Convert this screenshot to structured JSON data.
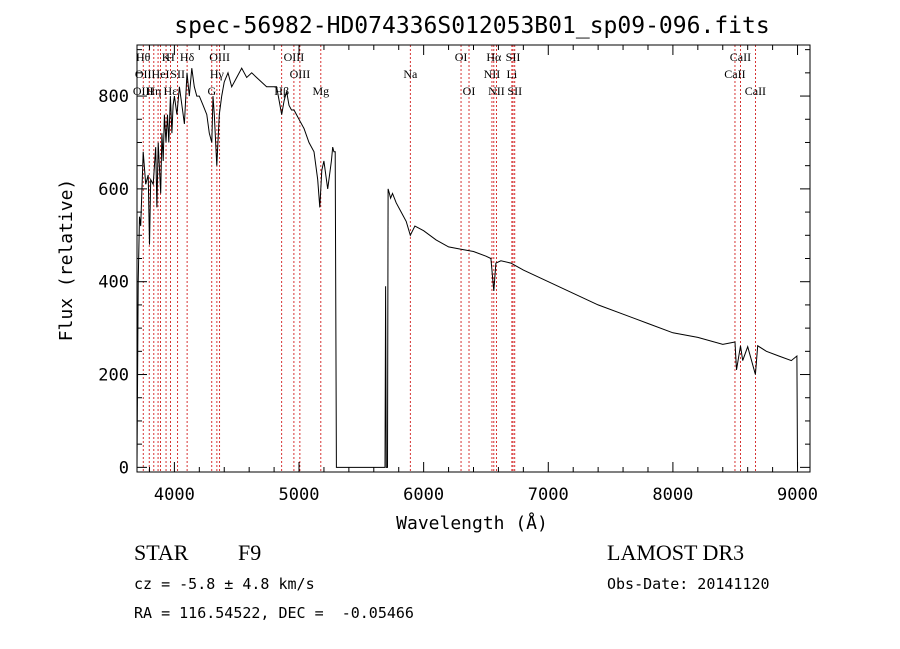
{
  "chart_data": {
    "type": "line",
    "title": "spec-56982-HD074336S012053B01_sp09-096.fits",
    "xlabel": "Wavelength (Å)",
    "ylabel": "Flux (relative)",
    "xlim": [
      3700,
      9100
    ],
    "ylim": [
      -10,
      910
    ],
    "grid": false,
    "x_ticks": [
      4000,
      5000,
      6000,
      7000,
      8000,
      9000
    ],
    "x_tick_labels": [
      "4000",
      "5000",
      "6000",
      "7000",
      "8000",
      "9000"
    ],
    "y_ticks": [
      0,
      200,
      400,
      600,
      800
    ],
    "y_tick_labels": [
      "0",
      "200",
      "400",
      "600",
      "800"
    ],
    "series": [
      {
        "name": "flux",
        "x": [
          3700,
          3710,
          3720,
          3730,
          3750,
          3770,
          3790,
          3800,
          3810,
          3830,
          3850,
          3860,
          3870,
          3890,
          3900,
          3910,
          3920,
          3933,
          3945,
          3955,
          3968,
          3980,
          3990,
          4000,
          4020,
          4040,
          4060,
          4080,
          4101,
          4120,
          4140,
          4160,
          4180,
          4200,
          4230,
          4260,
          4280,
          4300,
          4310,
          4320,
          4340,
          4360,
          4380,
          4400,
          4430,
          4460,
          4500,
          4540,
          4580,
          4620,
          4660,
          4700,
          4740,
          4780,
          4820,
          4861,
          4880,
          4900,
          4920,
          4940,
          4960,
          4980,
          5000,
          5040,
          5080,
          5120,
          5150,
          5167,
          5183,
          5200,
          5230,
          5260,
          5270,
          5280,
          5290,
          5300,
          5320,
          5500,
          5650,
          5690,
          5695,
          5700,
          5705,
          5710,
          5715,
          5725,
          5735,
          5750,
          5780,
          5820,
          5860,
          5893,
          5930,
          6000,
          6100,
          6200,
          6300,
          6400,
          6500,
          6540,
          6563,
          6580,
          6620,
          6700,
          6800,
          7000,
          7200,
          7400,
          7600,
          7800,
          8000,
          8200,
          8400,
          8498,
          8510,
          8542,
          8560,
          8600,
          8662,
          8680,
          8750,
          8850,
          8950,
          8995,
          9000
        ],
        "values": [
          0,
          400,
          540,
          520,
          680,
          610,
          630,
          480,
          620,
          610,
          690,
          560,
          700,
          590,
          720,
          660,
          760,
          700,
          760,
          700,
          800,
          720,
          780,
          800,
          760,
          820,
          780,
          740,
          850,
          800,
          860,
          820,
          800,
          800,
          780,
          760,
          720,
          700,
          800,
          760,
          650,
          760,
          800,
          830,
          850,
          820,
          840,
          860,
          840,
          850,
          840,
          830,
          820,
          820,
          820,
          760,
          790,
          810,
          780,
          770,
          770,
          760,
          750,
          730,
          700,
          680,
          620,
          560,
          640,
          660,
          600,
          660,
          690,
          680,
          680,
          0,
          0,
          0,
          0,
          0,
          390,
          0,
          0,
          0,
          600,
          590,
          580,
          590,
          570,
          550,
          530,
          500,
          520,
          510,
          490,
          475,
          470,
          465,
          455,
          450,
          380,
          440,
          445,
          440,
          425,
          400,
          375,
          350,
          330,
          310,
          290,
          280,
          265,
          270,
          210,
          262,
          230,
          260,
          200,
          262,
          250,
          240,
          230,
          240,
          0
        ]
      }
    ],
    "line_labels": [
      {
        "wavelength": 3750,
        "rows": [
          "Hθ",
          "OII",
          "OIII"
        ]
      },
      {
        "wavelength": 3798,
        "rows": [
          "",
          "",
          ""
        ]
      },
      {
        "wavelength": 3835,
        "rows": [
          "",
          "",
          "Hη"
        ]
      },
      {
        "wavelength": 3869,
        "rows": [
          "",
          "",
          ""
        ]
      },
      {
        "wavelength": 3889,
        "rows": [
          "",
          "HeI",
          ""
        ]
      },
      {
        "wavelength": 3933,
        "rows": [
          "K",
          "",
          ""
        ]
      },
      {
        "wavelength": 3968,
        "rows": [
          "H",
          "",
          "Hε"
        ]
      },
      {
        "wavelength": 4026,
        "rows": [
          "",
          "SII",
          ""
        ]
      },
      {
        "wavelength": 4102,
        "rows": [
          "Hδ",
          "",
          ""
        ]
      },
      {
        "wavelength": 4300,
        "rows": [
          "",
          "",
          "G"
        ]
      },
      {
        "wavelength": 4341,
        "rows": [
          "",
          "Hγ",
          ""
        ]
      },
      {
        "wavelength": 4363,
        "rows": [
          "OIII",
          "",
          ""
        ]
      },
      {
        "wavelength": 4861,
        "rows": [
          "",
          "",
          "Hβ"
        ]
      },
      {
        "wavelength": 4959,
        "rows": [
          "OIII",
          "",
          ""
        ]
      },
      {
        "wavelength": 5007,
        "rows": [
          "",
          "OIII",
          ""
        ]
      },
      {
        "wavelength": 5175,
        "rows": [
          "",
          "",
          "Mg"
        ]
      },
      {
        "wavelength": 5893,
        "rows": [
          "",
          "Na",
          ""
        ]
      },
      {
        "wavelength": 6300,
        "rows": [
          "OI",
          "",
          ""
        ]
      },
      {
        "wavelength": 6364,
        "rows": [
          "",
          "",
          "OI"
        ]
      },
      {
        "wavelength": 6548,
        "rows": [
          "",
          "NII",
          ""
        ]
      },
      {
        "wavelength": 6563,
        "rows": [
          "Hα",
          "",
          ""
        ]
      },
      {
        "wavelength": 6584,
        "rows": [
          "",
          "",
          "NII"
        ]
      },
      {
        "wavelength": 6708,
        "rows": [
          "",
          "Li",
          ""
        ]
      },
      {
        "wavelength": 6717,
        "rows": [
          "SII",
          "",
          ""
        ]
      },
      {
        "wavelength": 6731,
        "rows": [
          "",
          "",
          "SII"
        ]
      },
      {
        "wavelength": 8498,
        "rows": [
          "",
          "CaII",
          ""
        ]
      },
      {
        "wavelength": 8542,
        "rows": [
          "CaII",
          "",
          ""
        ]
      },
      {
        "wavelength": 8662,
        "rows": [
          "",
          "",
          "CaII"
        ]
      }
    ]
  },
  "info": {
    "class": "STAR",
    "subclass": "F9",
    "survey": "LAMOST DR3",
    "cz": "cz = -5.8 ± 4.8 km/s",
    "obs_date": "Obs-Date: 20141120",
    "coords": "RA = 116.54522, DEC =  -0.05466"
  },
  "colors": {
    "axis": "#000000",
    "spectrum": "#000000",
    "line_marker": "#cc0000",
    "background": "#ffffff"
  }
}
